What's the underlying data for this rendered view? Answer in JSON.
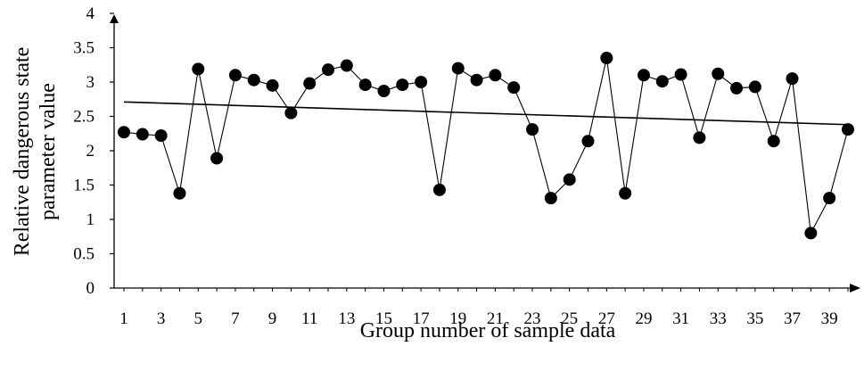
{
  "chart_data": {
    "type": "line",
    "xlabel": "Group number of sample data",
    "ylabel_lines": [
      "Relative dangerous state",
      "parameter value"
    ],
    "ylim": [
      0,
      4
    ],
    "y_ticks": [
      "0",
      "0.5",
      "1",
      "1.5",
      "2",
      "2.5",
      "3",
      "3.5",
      "4"
    ],
    "x_tick_labels": [
      "1",
      "3",
      "5",
      "7",
      "9",
      "11",
      "13",
      "15",
      "17",
      "19",
      "21",
      "23",
      "25",
      "27",
      "29",
      "31",
      "33",
      "35",
      "37",
      "39"
    ],
    "x": [
      1,
      2,
      3,
      4,
      5,
      6,
      7,
      8,
      9,
      10,
      11,
      12,
      13,
      14,
      15,
      16,
      17,
      18,
      19,
      20,
      21,
      22,
      23,
      24,
      25,
      26,
      27,
      28,
      29,
      30,
      31,
      32,
      33,
      34,
      35,
      36,
      37,
      38,
      39,
      40
    ],
    "series": [
      {
        "values": [
          2.27,
          2.24,
          2.22,
          1.38,
          3.19,
          1.89,
          3.1,
          3.03,
          2.95,
          2.55,
          2.98,
          3.18,
          3.24,
          2.96,
          2.87,
          2.96,
          3.0,
          1.43,
          3.2,
          3.03,
          3.1,
          2.92,
          2.31,
          1.31,
          1.58,
          2.14,
          3.35,
          1.38,
          3.1,
          3.01,
          3.11,
          2.19,
          3.12,
          2.91,
          2.93,
          2.14,
          3.05,
          0.8,
          1.31,
          2.31
        ],
        "marker": "circle",
        "color": "#000000"
      }
    ],
    "trendline": {
      "type": "linear",
      "start": [
        1,
        2.71
      ],
      "end": [
        40,
        2.38
      ]
    },
    "grid": false,
    "legend": false
  }
}
